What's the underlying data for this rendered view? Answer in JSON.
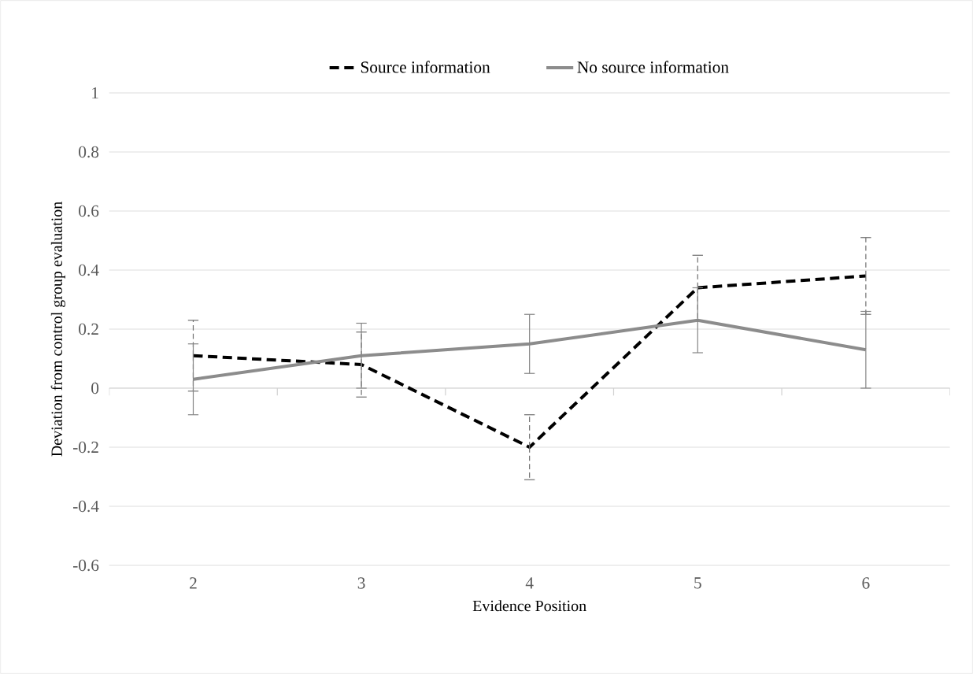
{
  "chart_data": {
    "type": "line",
    "xlabel": "Evidence Position",
    "ylabel": "Deviation from control group evaluation",
    "categories": [
      "2",
      "3",
      "4",
      "5",
      "6"
    ],
    "series": [
      {
        "name": "Source information",
        "color": "#000000",
        "line_style": "dashed",
        "values": [
          0.11,
          0.08,
          -0.2,
          0.34,
          0.38
        ],
        "errors": [
          0.12,
          0.11,
          0.11,
          0.11,
          0.13
        ]
      },
      {
        "name": "No source information",
        "color": "#8c8c8c",
        "line_style": "solid",
        "values": [
          0.03,
          0.11,
          0.15,
          0.23,
          0.13
        ],
        "errors": [
          0.12,
          0.11,
          0.1,
          0.11,
          0.13
        ]
      }
    ],
    "ylim": [
      -0.6,
      1
    ],
    "yticks": [
      -0.6,
      -0.4,
      -0.2,
      0,
      0.2,
      0.4,
      0.6,
      0.8,
      1
    ],
    "grid": "y",
    "legend": "top",
    "marker": "none"
  }
}
